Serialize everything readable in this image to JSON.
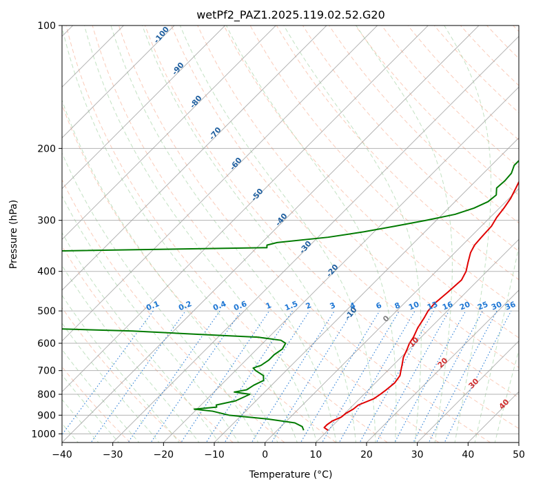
{
  "chart_data": {
    "type": "line",
    "title": "wetPf2_PAZ1.2025.119.02.52.G20",
    "xlabel": "Temperature (°C)",
    "ylabel": "Pressure (hPa)",
    "xlim": [
      -40,
      50
    ],
    "ylim": [
      1050,
      100
    ],
    "y_scale": "log",
    "grid": true,
    "x_ticks": [
      -40,
      -30,
      -20,
      -10,
      0,
      10,
      20,
      30,
      40,
      50
    ],
    "y_ticks": [
      100,
      200,
      300,
      400,
      500,
      600,
      700,
      800,
      900,
      1000
    ],
    "x_tick_labels": [
      "−40",
      "−30",
      "−20",
      "−10",
      "0",
      "10",
      "20",
      "30",
      "40",
      "50"
    ],
    "y_tick_labels": [
      "100",
      "200",
      "300",
      "400",
      "500",
      "600",
      "700",
      "800",
      "900",
      "1000"
    ],
    "colors": {
      "temperature": "#e00000",
      "dewpoint": "#007a00",
      "isotherm": "#a0a0a0",
      "dry_adiabat": "#f5a080",
      "moist_adiabat": "#90c890",
      "mixing_ratio": "#1f77d4",
      "wetbulb_label": "#1f5f9f",
      "potential_temp_label": "#d03030"
    },
    "series": [
      {
        "p": [
          980,
          965,
          950,
          930,
          910,
          890,
          870,
          850,
          820,
          800,
          780,
          750,
          720,
          700,
          680,
          650,
          620,
          600,
          580,
          550,
          520,
          500,
          480,
          450,
          420,
          400,
          380,
          360,
          345,
          330,
          310,
          295,
          280,
          265,
          250,
          235,
          225,
          215,
          205,
          195,
          185,
          180,
          175,
          165,
          155,
          145,
          135,
          125,
          115,
          105,
          100
        ],
        "t": [
          10,
          8.7,
          8.7,
          9,
          10,
          10.2,
          10.8,
          11,
          12.8,
          13.2,
          13.5,
          13.8,
          13.4,
          12.6,
          11.8,
          10.5,
          9.6,
          8.9,
          8.5,
          7.5,
          6.8,
          6.2,
          6.0,
          6.4,
          6.7,
          5.9,
          4.5,
          3.1,
          2.4,
          2.2,
          2.0,
          1.3,
          0.9,
          0.3,
          -0.7,
          -1.8,
          -2.4,
          -2.9,
          -3.8,
          -4.1,
          -3.6,
          -2.0,
          1.5,
          5.0,
          8.5,
          11.5,
          13.5,
          15.5,
          17.5,
          19.2,
          20.0
        ]
      },
      {
        "p": [
          980,
          960,
          940,
          920,
          900,
          880,
          870,
          860,
          850,
          830,
          810,
          800,
          790,
          780,
          760,
          740,
          720,
          700,
          690,
          680,
          660,
          640,
          620,
          600,
          590,
          580,
          570,
          560,
          550,
          540,
          500,
          450,
          400,
          380,
          370,
          360,
          350,
          345,
          340,
          330,
          320,
          310,
          300,
          290,
          280,
          270,
          260,
          250,
          240,
          230,
          220,
          210,
          205,
          200,
          195,
          190,
          185,
          180,
          175,
          170,
          160,
          150,
          140,
          130,
          120,
          110,
          100
        ],
        "t": [
          5.2,
          4.2,
          2.0,
          -4.0,
          -12.5,
          -16.5,
          -20.5,
          -16.5,
          -17,
          -14,
          -13,
          -12.5,
          -16,
          -14,
          -13.5,
          -12.5,
          -13.5,
          -16,
          -17,
          -16,
          -15.5,
          -15.5,
          -15,
          -15.5,
          -17,
          -22,
          -35,
          -48,
          -70,
          -80,
          -100,
          -100,
          -100,
          -100,
          -100,
          -100,
          -38,
          -38.5,
          -37,
          -28,
          -22,
          -17,
          -12,
          -7.5,
          -5,
          -3.5,
          -3.2,
          -4.5,
          -4.3,
          -4.5,
          -5.5,
          -5.5,
          -5,
          -4,
          -5.5,
          -4,
          -6.5,
          -10.8,
          -11.5,
          -11,
          -10,
          -8.5,
          -7,
          -5.5,
          -4,
          -2.5,
          0.5
        ]
      }
    ],
    "wetbulb_labels": [
      "-10",
      "-20",
      "-30",
      "-40",
      "-50",
      "-60",
      "-70",
      "-80",
      "-90",
      "-100"
    ],
    "mixing_ratio_labels": [
      "0.1",
      "0.2",
      "0.4",
      "0.6",
      "1",
      "1.5",
      "2",
      "3",
      "4",
      "6",
      "8",
      "10",
      "13",
      "16",
      "20",
      "25",
      "30",
      "36"
    ],
    "potential_temp_labels": [
      "0",
      "10",
      "20",
      "30",
      "40"
    ]
  }
}
